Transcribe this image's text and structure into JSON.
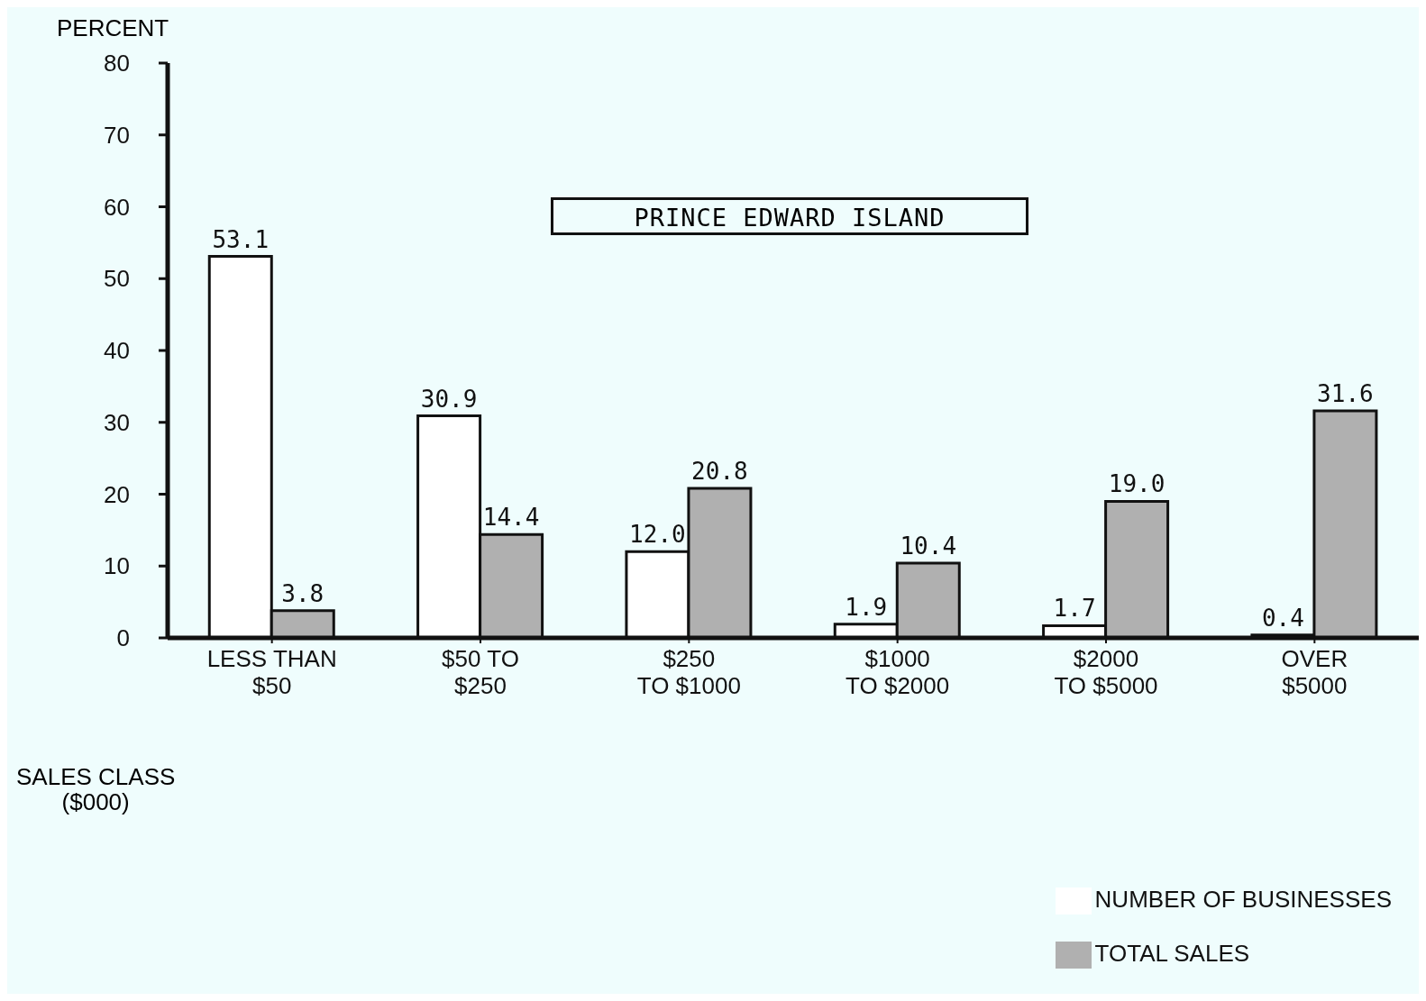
{
  "chart_data": {
    "type": "bar",
    "title": "PRINCE EDWARD ISLAND",
    "ylabel": "PERCENT",
    "xlabel": "SALES CLASS\n($000)",
    "categories": [
      "LESS THAN\n$50",
      "$50 TO\n$250",
      "$250\nTO $1000",
      "$1000\nTO $2000",
      "$2000\nTO $5000",
      "OVER\n$5000"
    ],
    "series": [
      {
        "name": "NUMBER OF BUSINESSES",
        "color": "#ffffff",
        "values": [
          53.1,
          30.9,
          12.0,
          1.9,
          1.7,
          0.4
        ],
        "value_labels": [
          "53.1",
          "30.9",
          "12.0",
          "1.9",
          "1.7",
          "0.4"
        ]
      },
      {
        "name": "TOTAL SALES",
        "color": "#b0b0b0",
        "values": [
          3.8,
          14.4,
          20.8,
          10.4,
          19.0,
          31.6
        ],
        "value_labels": [
          "3.8",
          "14.4",
          "20.8",
          "10.4",
          "19.0",
          "31.6"
        ]
      }
    ],
    "ylim": [
      0,
      80
    ],
    "yticks": [
      0,
      10,
      20,
      30,
      40,
      50,
      60,
      70,
      80
    ],
    "legend": "bottom right",
    "grid": false
  }
}
